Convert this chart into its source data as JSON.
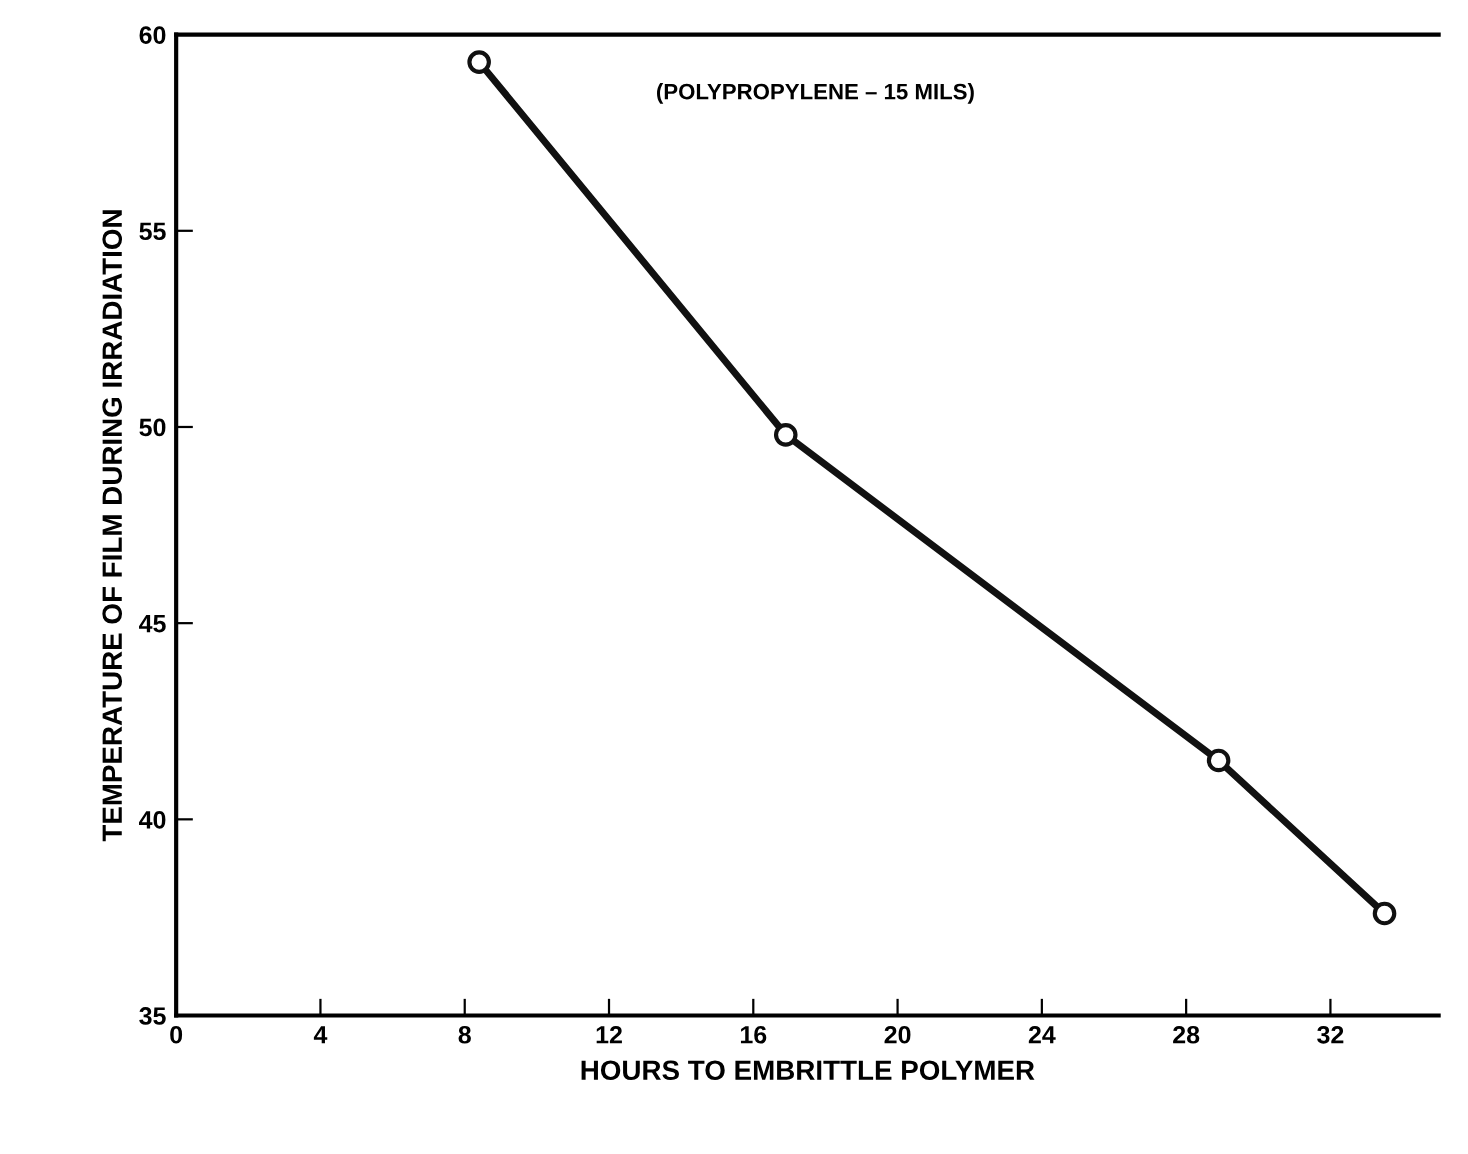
{
  "chart_data": {
    "type": "line",
    "xlabel": "HOURS TO EMBRITTLE POLYMER",
    "ylabel": "TEMPERATURE OF FILM DURING IRRADIATION",
    "annotations": [
      "(POLYPROPYLENE – 15 MILS)"
    ],
    "x": [
      8.4,
      16.9,
      28.9,
      33.5
    ],
    "series": [
      {
        "color": "#111111",
        "values": [
          59.3,
          49.8,
          41.5,
          37.6
        ]
      }
    ],
    "xlim": [
      0,
      35
    ],
    "ylim": [
      35,
      60
    ],
    "xticks": [
      0,
      4,
      8,
      12,
      16,
      20,
      24,
      28,
      32
    ],
    "yticks": [
      35,
      40,
      45,
      50,
      55,
      60
    ],
    "marker": "circle",
    "line_style": "solid",
    "grid": false,
    "legend": false
  }
}
